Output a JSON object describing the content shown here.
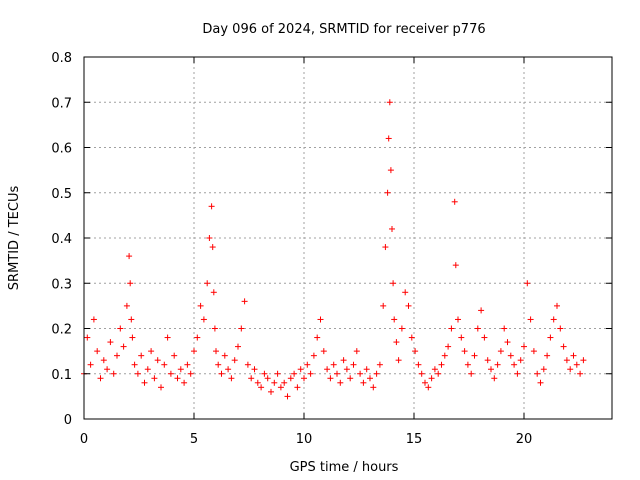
{
  "chart_data": {
    "type": "scatter",
    "title": "Day 096 of 2024, SRMTID for receiver p776",
    "xlabel": "GPS time / hours",
    "ylabel": "SRMTID / TECUs",
    "xlim": [
      0,
      24
    ],
    "ylim": [
      0,
      0.8
    ],
    "x_ticks": [
      0,
      5,
      10,
      15,
      20
    ],
    "x_tick_labels": [
      "0",
      "5",
      "10",
      "15",
      "20"
    ],
    "y_ticks": [
      0,
      0.1,
      0.2,
      0.3,
      0.4,
      0.5,
      0.6,
      0.7,
      0.8
    ],
    "y_tick_labels": [
      "0",
      "0.1",
      "0.2",
      "0.3",
      "0.4",
      "0.5",
      "0.6",
      "0.7",
      "0.8"
    ],
    "grid": true,
    "marker": "+",
    "color": "#ff0000",
    "series": [
      {
        "name": "SRMTID",
        "description": "dense scatter of SRMTID values between 0 and 22.7 hours",
        "x": [
          0.0,
          0.15,
          0.3,
          0.45,
          0.6,
          0.75,
          0.9,
          1.05,
          1.2,
          1.35,
          1.5,
          1.65,
          1.8,
          1.95,
          2.05,
          2.1,
          2.15,
          2.2,
          2.3,
          2.45,
          2.6,
          2.75,
          2.9,
          3.05,
          3.2,
          3.35,
          3.5,
          3.65,
          3.8,
          3.95,
          4.1,
          4.25,
          4.4,
          4.55,
          4.7,
          4.85,
          5.0,
          5.15,
          5.3,
          5.45,
          5.6,
          5.7,
          5.8,
          5.85,
          5.9,
          5.95,
          6.0,
          6.1,
          6.25,
          6.4,
          6.55,
          6.7,
          6.85,
          7.0,
          7.15,
          7.3,
          7.45,
          7.6,
          7.75,
          7.9,
          8.05,
          8.2,
          8.35,
          8.5,
          8.65,
          8.8,
          8.95,
          9.1,
          9.25,
          9.4,
          9.55,
          9.7,
          9.85,
          10.0,
          10.15,
          10.3,
          10.45,
          10.6,
          10.75,
          10.9,
          11.05,
          11.2,
          11.35,
          11.5,
          11.65,
          11.8,
          11.95,
          12.1,
          12.25,
          12.4,
          12.55,
          12.7,
          12.85,
          13.0,
          13.15,
          13.3,
          13.45,
          13.6,
          13.7,
          13.8,
          13.85,
          13.9,
          13.95,
          14.0,
          14.05,
          14.1,
          14.2,
          14.3,
          14.45,
          14.6,
          14.75,
          14.9,
          15.05,
          15.2,
          15.35,
          15.5,
          15.65,
          15.8,
          15.95,
          16.1,
          16.25,
          16.4,
          16.55,
          16.7,
          16.85,
          16.9,
          17.0,
          17.15,
          17.3,
          17.45,
          17.6,
          17.75,
          17.9,
          18.05,
          18.2,
          18.35,
          18.5,
          18.65,
          18.8,
          18.95,
          19.1,
          19.25,
          19.4,
          19.55,
          19.7,
          19.85,
          20.0,
          20.15,
          20.3,
          20.45,
          20.6,
          20.75,
          20.9,
          21.05,
          21.2,
          21.35,
          21.5,
          21.65,
          21.8,
          21.95,
          22.1,
          22.25,
          22.4,
          22.55,
          22.7
        ],
        "y": [
          0.1,
          0.18,
          0.12,
          0.22,
          0.15,
          0.09,
          0.13,
          0.11,
          0.17,
          0.1,
          0.14,
          0.2,
          0.16,
          0.25,
          0.36,
          0.3,
          0.22,
          0.18,
          0.12,
          0.1,
          0.14,
          0.08,
          0.11,
          0.15,
          0.09,
          0.13,
          0.07,
          0.12,
          0.18,
          0.1,
          0.14,
          0.09,
          0.11,
          0.08,
          0.12,
          0.1,
          0.15,
          0.18,
          0.25,
          0.22,
          0.3,
          0.4,
          0.47,
          0.38,
          0.28,
          0.2,
          0.15,
          0.12,
          0.1,
          0.14,
          0.11,
          0.09,
          0.13,
          0.16,
          0.2,
          0.26,
          0.12,
          0.09,
          0.11,
          0.08,
          0.07,
          0.1,
          0.09,
          0.06,
          0.08,
          0.1,
          0.07,
          0.08,
          0.05,
          0.09,
          0.1,
          0.07,
          0.11,
          0.09,
          0.12,
          0.1,
          0.14,
          0.18,
          0.22,
          0.15,
          0.11,
          0.09,
          0.12,
          0.1,
          0.08,
          0.13,
          0.11,
          0.09,
          0.12,
          0.15,
          0.1,
          0.08,
          0.11,
          0.09,
          0.07,
          0.1,
          0.12,
          0.25,
          0.38,
          0.5,
          0.62,
          0.7,
          0.55,
          0.42,
          0.3,
          0.22,
          0.17,
          0.13,
          0.2,
          0.28,
          0.25,
          0.18,
          0.15,
          0.12,
          0.1,
          0.08,
          0.07,
          0.09,
          0.11,
          0.1,
          0.12,
          0.14,
          0.16,
          0.2,
          0.48,
          0.34,
          0.22,
          0.18,
          0.15,
          0.12,
          0.1,
          0.14,
          0.2,
          0.24,
          0.18,
          0.13,
          0.11,
          0.09,
          0.12,
          0.15,
          0.2,
          0.17,
          0.14,
          0.12,
          0.1,
          0.13,
          0.16,
          0.3,
          0.22,
          0.15,
          0.1,
          0.08,
          0.11,
          0.14,
          0.18,
          0.22,
          0.25,
          0.2,
          0.16,
          0.13,
          0.11,
          0.14,
          0.12,
          0.1,
          0.13
        ]
      }
    ]
  }
}
